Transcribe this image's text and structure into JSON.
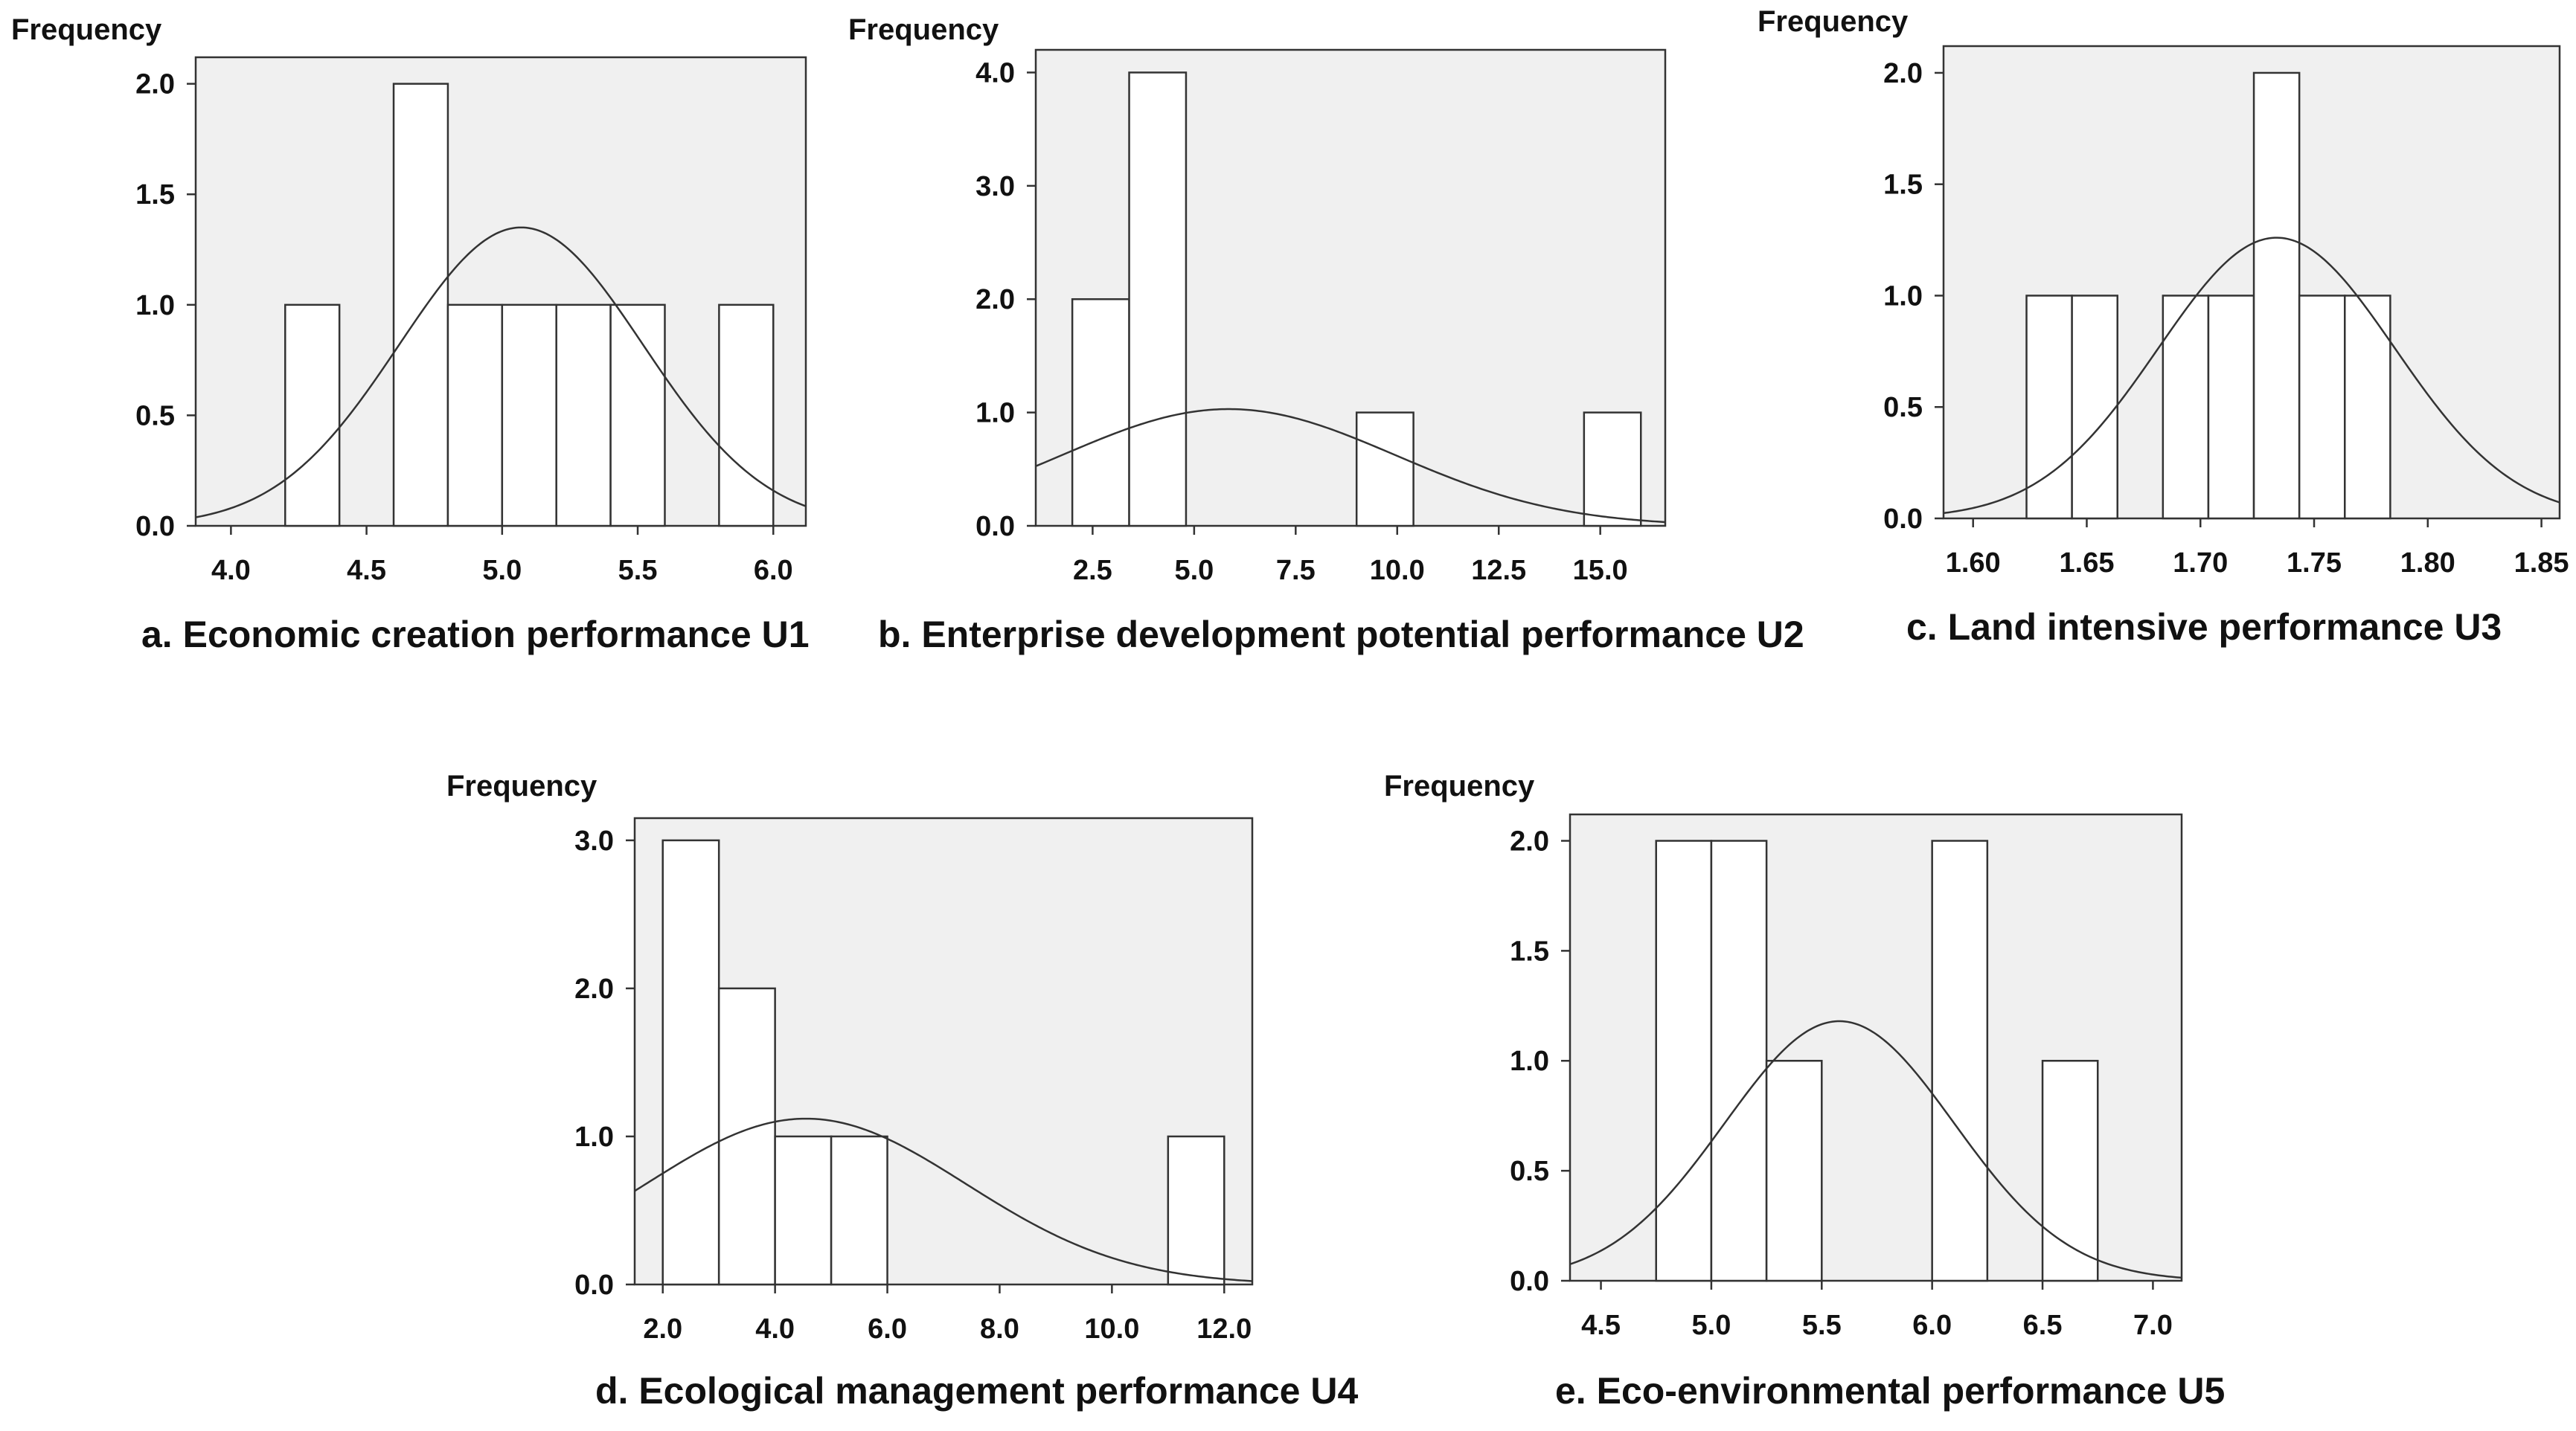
{
  "colors": {
    "plot_background": "#f0f0f0",
    "bar_fill": "#ffffff",
    "stroke": "#333333",
    "text": "#111111"
  },
  "chart_data": [
    {
      "id": "U1",
      "type": "bar",
      "caption": "a. Economic creation performance U1",
      "ylabel": "Frequency",
      "xlim": [
        3.87,
        6.12
      ],
      "ylim": [
        0,
        2.12
      ],
      "xticks": [
        4.0,
        4.5,
        5.0,
        5.5,
        6.0
      ],
      "xtick_labels": [
        "4.0",
        "4.5",
        "5.0",
        "5.5",
        "6.0"
      ],
      "yticks": [
        0,
        0.5,
        1.0,
        1.5,
        2.0
      ],
      "ytick_labels": [
        "0.0",
        "0.5",
        "1.0",
        "1.5",
        "2.0"
      ],
      "bins": [
        [
          4.2,
          4.4
        ],
        [
          4.6,
          4.8
        ],
        [
          4.8,
          5.0
        ],
        [
          5.0,
          5.2
        ],
        [
          5.2,
          5.4
        ],
        [
          5.4,
          5.6
        ],
        [
          5.8,
          6.0
        ]
      ],
      "values": [
        1,
        2,
        1,
        1,
        1,
        1,
        1
      ],
      "normal_curve": {
        "mean": 5.07,
        "sd": 0.45,
        "peak": 1.35
      }
    },
    {
      "id": "U2",
      "type": "bar",
      "caption": "b. Enterprise development potential performance U2",
      "ylabel": "Frequency",
      "xlim": [
        1.1,
        16.6
      ],
      "ylim": [
        0,
        4.2
      ],
      "xticks": [
        2.5,
        5.0,
        7.5,
        10.0,
        12.5,
        15.0
      ],
      "xtick_labels": [
        "2.5",
        "5.0",
        "7.5",
        "10.0",
        "12.5",
        "15.0"
      ],
      "yticks": [
        0,
        1.0,
        2.0,
        3.0,
        4.0
      ],
      "ytick_labels": [
        "0.0",
        "1.0",
        "2.0",
        "3.0",
        "4.0"
      ],
      "bins": [
        [
          2.0,
          3.4
        ],
        [
          3.4,
          4.8
        ],
        [
          9.0,
          10.4
        ],
        [
          14.6,
          16.0
        ]
      ],
      "values": [
        2,
        4,
        1,
        1
      ],
      "normal_curve": {
        "mean": 5.85,
        "sd": 4.1,
        "peak": 1.03
      }
    },
    {
      "id": "U3",
      "type": "bar",
      "caption": "c. Land intensive performance U3",
      "ylabel": "Frequency",
      "xlim": [
        1.587,
        1.858
      ],
      "ylim": [
        0,
        2.12
      ],
      "xticks": [
        1.6,
        1.65,
        1.7,
        1.75,
        1.8,
        1.85
      ],
      "xtick_labels": [
        "1.60",
        "1.65",
        "1.70",
        "1.75",
        "1.80",
        "1.85"
      ],
      "yticks": [
        0,
        0.5,
        1.0,
        1.5,
        2.0
      ],
      "ytick_labels": [
        "0.0",
        "0.5",
        "1.0",
        "1.5",
        "2.0"
      ],
      "bins": [
        [
          1.6235,
          1.6435
        ],
        [
          1.6435,
          1.6635
        ],
        [
          1.6835,
          1.7035
        ],
        [
          1.7035,
          1.7235
        ],
        [
          1.7235,
          1.7435
        ],
        [
          1.7435,
          1.7635
        ],
        [
          1.7635,
          1.7835
        ]
      ],
      "values": [
        1,
        1,
        1,
        1,
        2,
        1,
        1
      ],
      "normal_curve": {
        "mean": 1.7335,
        "sd": 0.052,
        "peak": 1.26
      }
    },
    {
      "id": "U4",
      "type": "bar",
      "caption": "d. Ecological management performance  U4",
      "ylabel": "Frequency",
      "xlim": [
        1.5,
        12.5
      ],
      "ylim": [
        0,
        3.15
      ],
      "xticks": [
        2.0,
        4.0,
        6.0,
        8.0,
        10.0,
        12.0
      ],
      "xtick_labels": [
        "2.0",
        "4.0",
        "6.0",
        "8.0",
        "10.0",
        "12.0"
      ],
      "yticks": [
        0,
        1.0,
        2.0,
        3.0
      ],
      "ytick_labels": [
        "0.0",
        "1.0",
        "2.0",
        "3.0"
      ],
      "bins": [
        [
          2.0,
          3.0
        ],
        [
          3.0,
          4.0
        ],
        [
          4.0,
          5.0
        ],
        [
          5.0,
          6.0
        ],
        [
          11.0,
          12.0
        ]
      ],
      "values": [
        3,
        2,
        1,
        1,
        1
      ],
      "normal_curve": {
        "mean": 4.55,
        "sd": 2.85,
        "peak": 1.12
      }
    },
    {
      "id": "U5",
      "type": "bar",
      "caption": "e. Eco-environmental performance  U5",
      "ylabel": "Frequency",
      "xlim": [
        4.36,
        7.13
      ],
      "ylim": [
        0,
        2.12
      ],
      "xticks": [
        4.5,
        5.0,
        5.5,
        6.0,
        6.5,
        7.0
      ],
      "xtick_labels": [
        "4.5",
        "5.0",
        "5.5",
        "6.0",
        "6.5",
        "7.0"
      ],
      "yticks": [
        0,
        0.5,
        1.0,
        1.5,
        2.0
      ],
      "ytick_labels": [
        "0.0",
        "0.5",
        "1.0",
        "1.5",
        "2.0"
      ],
      "bins": [
        [
          4.75,
          5.0
        ],
        [
          5.0,
          5.25
        ],
        [
          5.25,
          5.5
        ],
        [
          5.75,
          6.0
        ],
        [
          6.0,
          6.25
        ],
        [
          6.5,
          6.75
        ]
      ],
      "values": [
        2,
        2,
        1,
        0,
        2,
        1
      ],
      "normal_curve": {
        "mean": 5.58,
        "sd": 0.52,
        "peak": 1.18
      }
    }
  ]
}
